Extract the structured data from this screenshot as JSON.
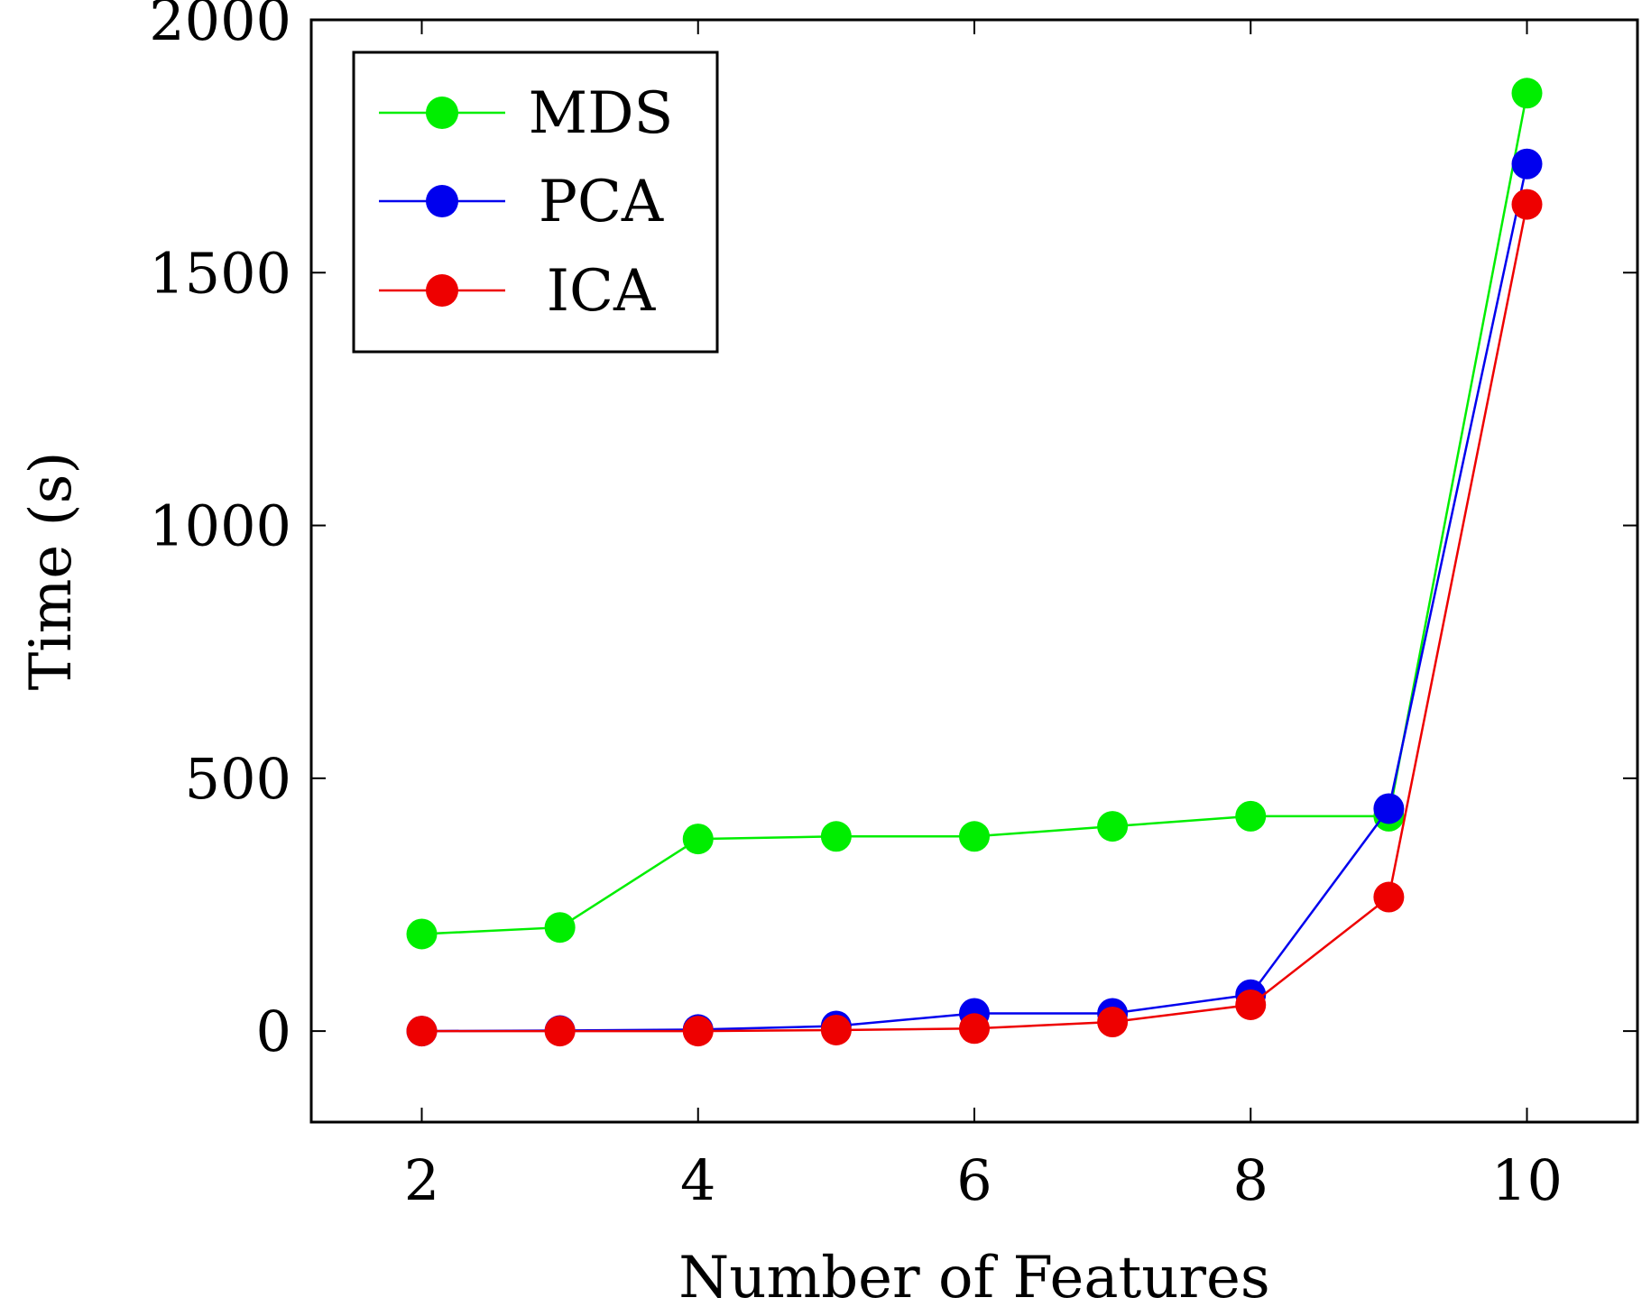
{
  "chart_data": {
    "type": "line",
    "title": "",
    "xlabel": "Number of Features",
    "ylabel": "Time (s)",
    "x": [
      2,
      3,
      4,
      5,
      6,
      7,
      8,
      9,
      10
    ],
    "xticks": [
      "2",
      "4",
      "6",
      "8",
      "10"
    ],
    "xtick_values": [
      2,
      4,
      6,
      8,
      10
    ],
    "yticks": [
      "0",
      "500",
      "1000",
      "1500",
      "2000"
    ],
    "ytick_values": [
      0,
      500,
      1000,
      1500,
      2000
    ],
    "xlim": [
      1.2,
      10.8
    ],
    "ylim": [
      -180,
      2000
    ],
    "legend_position": "top-left",
    "grid": false,
    "series": [
      {
        "name": "MDS",
        "color": "#00ee00",
        "values": [
          192,
          205,
          380,
          385,
          385,
          405,
          425,
          425,
          1855
        ]
      },
      {
        "name": "PCA",
        "color": "#0000ee",
        "values": [
          0,
          1,
          3,
          10,
          35,
          35,
          72,
          440,
          1715
        ]
      },
      {
        "name": "ICA",
        "color": "#ee0000",
        "values": [
          0,
          0,
          0,
          2,
          5,
          18,
          52,
          265,
          1635
        ]
      }
    ]
  }
}
